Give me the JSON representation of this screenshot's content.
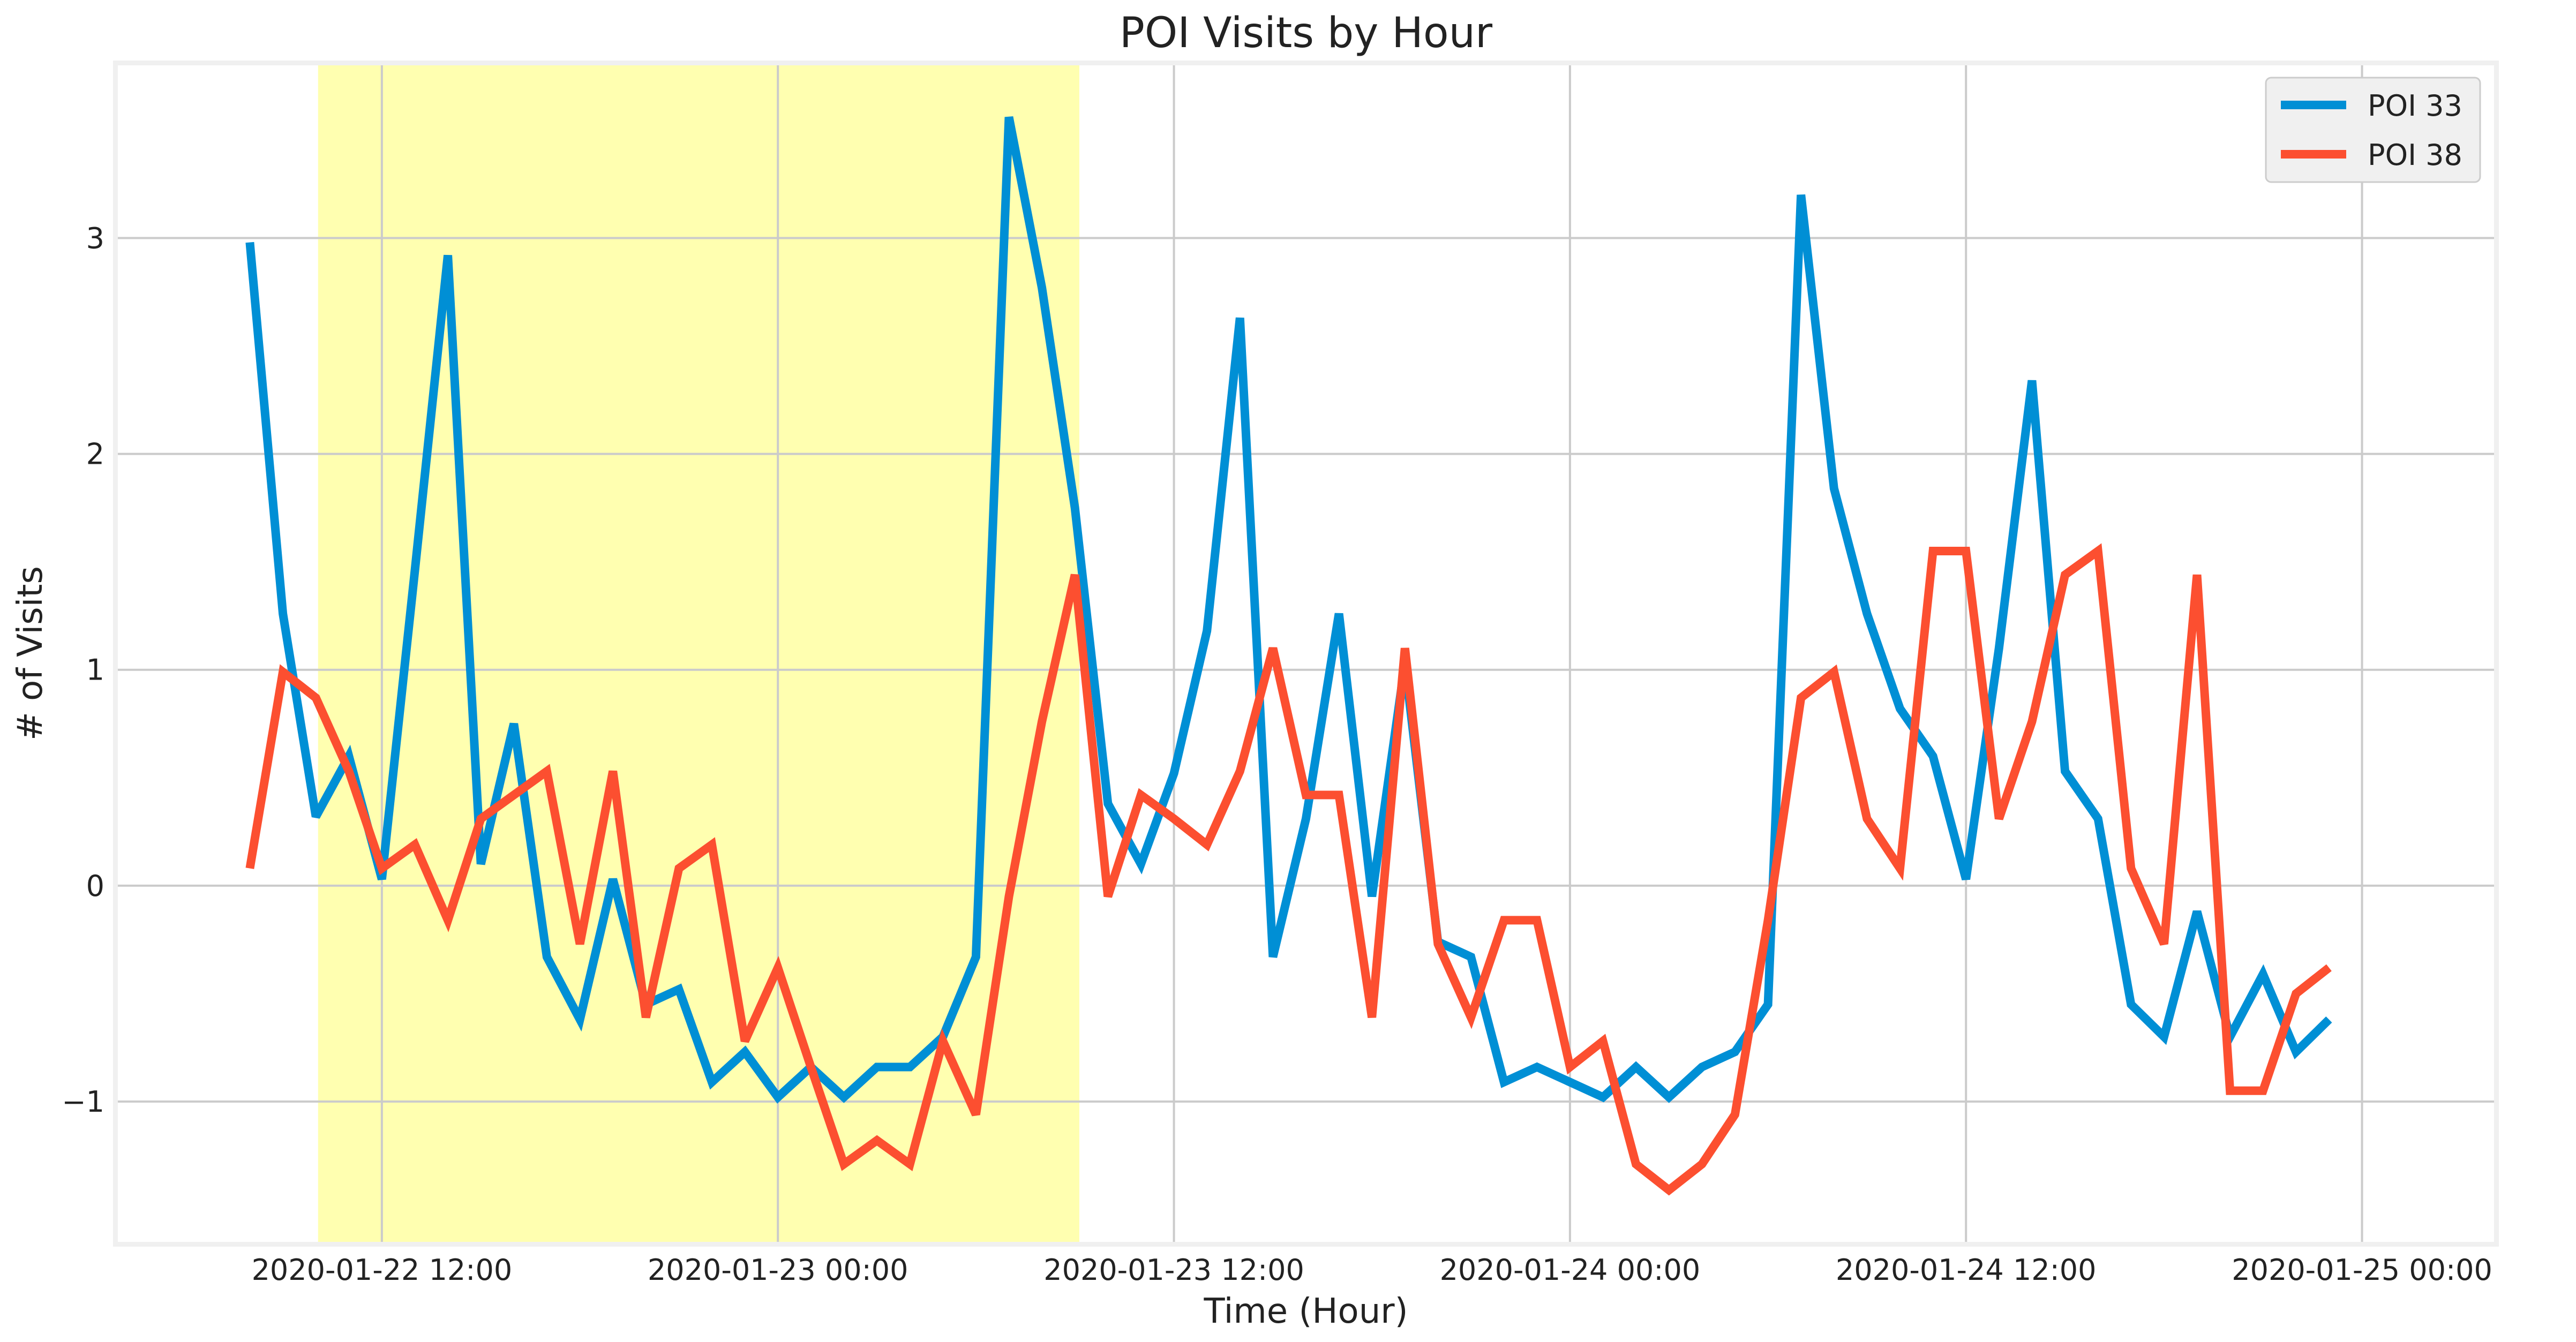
{
  "chart_data": {
    "type": "line",
    "title": "POI Visits by Hour",
    "xlabel": "Time (Hour)",
    "ylabel": "# of Visits",
    "ylim": [
      -1.65,
      3.8
    ],
    "xlim": [
      -6,
      102
    ],
    "grid": true,
    "legend_position": "top-right",
    "y_ticks": [
      {
        "value": -1,
        "label": "−1"
      },
      {
        "value": 0,
        "label": "0"
      },
      {
        "value": 1,
        "label": "1"
      },
      {
        "value": 2,
        "label": "2"
      },
      {
        "value": 3,
        "label": "3"
      }
    ],
    "x_ticks": [
      {
        "value": 6,
        "label": "2020-01-22 12:00"
      },
      {
        "value": 24,
        "label": "2020-01-23 00:00"
      },
      {
        "value": 42,
        "label": "2020-01-23 12:00"
      },
      {
        "value": 60,
        "label": "2020-01-24 00:00"
      },
      {
        "value": 78,
        "label": "2020-01-24 12:00"
      },
      {
        "value": 96,
        "label": "2020-01-25 00:00"
      }
    ],
    "highlight": {
      "start": 3.1,
      "end": 37.7,
      "color": "#ffffb0"
    },
    "x": [
      0,
      1.5,
      3,
      4.5,
      6,
      7.5,
      9,
      10.5,
      12,
      13.5,
      15,
      16.5,
      18,
      19.5,
      21,
      22.5,
      24,
      25.5,
      27,
      28.5,
      30,
      31.5,
      33,
      34.5,
      36,
      37.5,
      39,
      40.5,
      42,
      43.5,
      45,
      46.5,
      48,
      49.5,
      51,
      52.5,
      54,
      55.5,
      57,
      58.5,
      60,
      61.5,
      63,
      64.5,
      66,
      67.5,
      69,
      70.5,
      72,
      73.5,
      75,
      76.5,
      78,
      79.5,
      81,
      82.5,
      84,
      85.5,
      87,
      88.5,
      90,
      91.5,
      93,
      94.5
    ],
    "series": [
      {
        "name": "POI 33",
        "color": "#008fd5",
        "values": [
          2.98,
          1.26,
          0.32,
          0.6,
          0.03,
          1.46,
          2.92,
          0.1,
          0.75,
          -0.33,
          -0.62,
          0.03,
          -0.55,
          -0.48,
          -0.91,
          -0.77,
          -0.98,
          -0.84,
          -0.98,
          -0.84,
          -0.84,
          -0.7,
          -0.33,
          3.56,
          2.77,
          1.75,
          0.38,
          0.1,
          0.52,
          1.18,
          2.63,
          -0.33,
          0.31,
          1.26,
          -0.05,
          1.03,
          -0.26,
          -0.33,
          -0.91,
          -0.84,
          -0.91,
          -0.98,
          -0.84,
          -0.98,
          -0.84,
          -0.77,
          -0.55,
          3.2,
          1.84,
          1.26,
          0.82,
          0.6,
          0.03,
          1.1,
          2.34,
          0.53,
          0.31,
          -0.55,
          -0.7,
          -0.12,
          -0.7,
          -0.41,
          -0.77,
          -0.62
        ]
      },
      {
        "name": "POI 38",
        "color": "#fc4f30",
        "values": [
          0.08,
          0.99,
          0.87,
          0.53,
          0.08,
          0.19,
          -0.16,
          0.31,
          0.42,
          0.53,
          -0.27,
          0.53,
          -0.61,
          0.08,
          0.19,
          -0.72,
          -0.38,
          -0.84,
          -1.29,
          -1.18,
          -1.29,
          -0.72,
          -1.06,
          -0.05,
          0.76,
          1.44,
          -0.05,
          0.42,
          0.31,
          0.19,
          0.53,
          1.1,
          0.42,
          0.42,
          -0.61,
          1.1,
          -0.27,
          -0.61,
          -0.16,
          -0.16,
          -0.84,
          -0.72,
          -1.29,
          -1.41,
          -1.29,
          -1.06,
          -0.16,
          0.87,
          0.99,
          0.31,
          0.08,
          1.55,
          1.55,
          0.31,
          0.76,
          1.44,
          1.55,
          0.08,
          -0.27,
          1.44,
          -0.95,
          -0.95,
          -0.5,
          -0.38
        ]
      }
    ]
  }
}
